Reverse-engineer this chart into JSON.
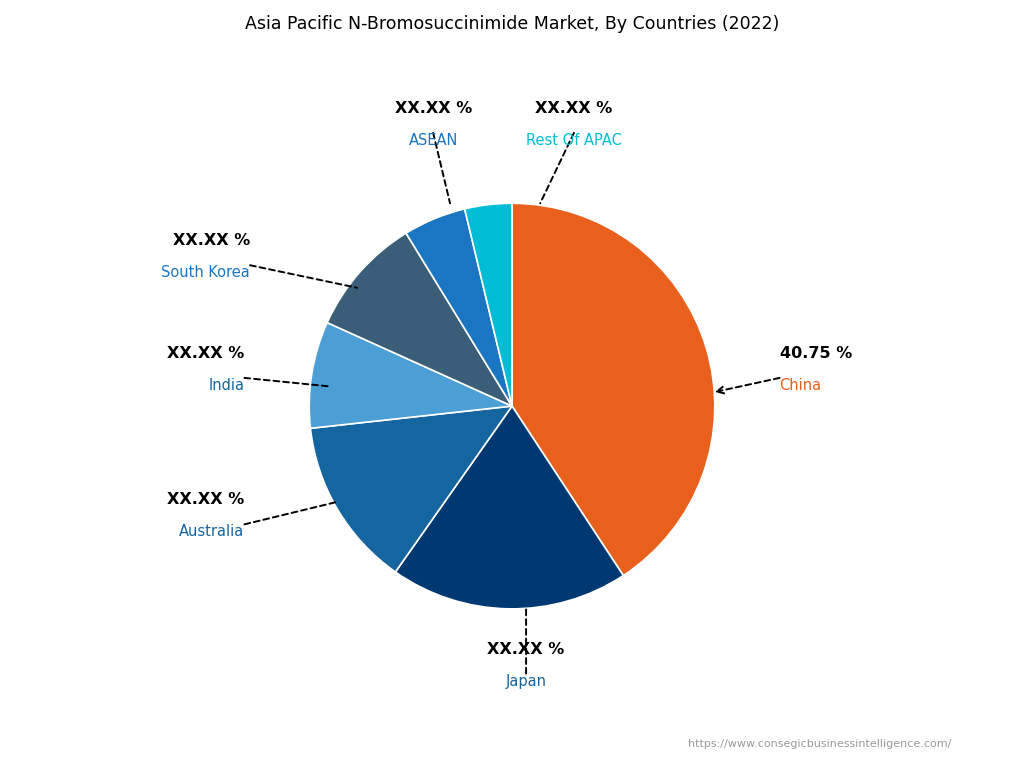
{
  "title": "Asia Pacific N-Bromosuccinimide Market, By Countries (2022)",
  "slices": [
    {
      "label": "China",
      "value": 40.75,
      "display": "40.75 %",
      "color": "#E8601C"
    },
    {
      "label": "Japan",
      "value": 19.0,
      "display": "XX.XX %",
      "color": "#003972"
    },
    {
      "label": "Australia",
      "value": 13.5,
      "display": "XX.XX %",
      "color": "#1565A0"
    },
    {
      "label": "India",
      "value": 8.5,
      "display": "XX.XX %",
      "color": "#4B9FD4"
    },
    {
      "label": "South Korea",
      "value": 9.5,
      "display": "XX.XX %",
      "color": "#3A5E78"
    },
    {
      "label": "ASEAN",
      "value": 5.0,
      "display": "XX.XX %",
      "color": "#1A75C2"
    },
    {
      "label": "Rest Of APAC",
      "value": 3.75,
      "display": "XX.XX %",
      "color": "#00BCD4"
    }
  ],
  "watermark": "https://www.consegicbusinessintelligence.com/",
  "background_color": "#FFFFFF"
}
